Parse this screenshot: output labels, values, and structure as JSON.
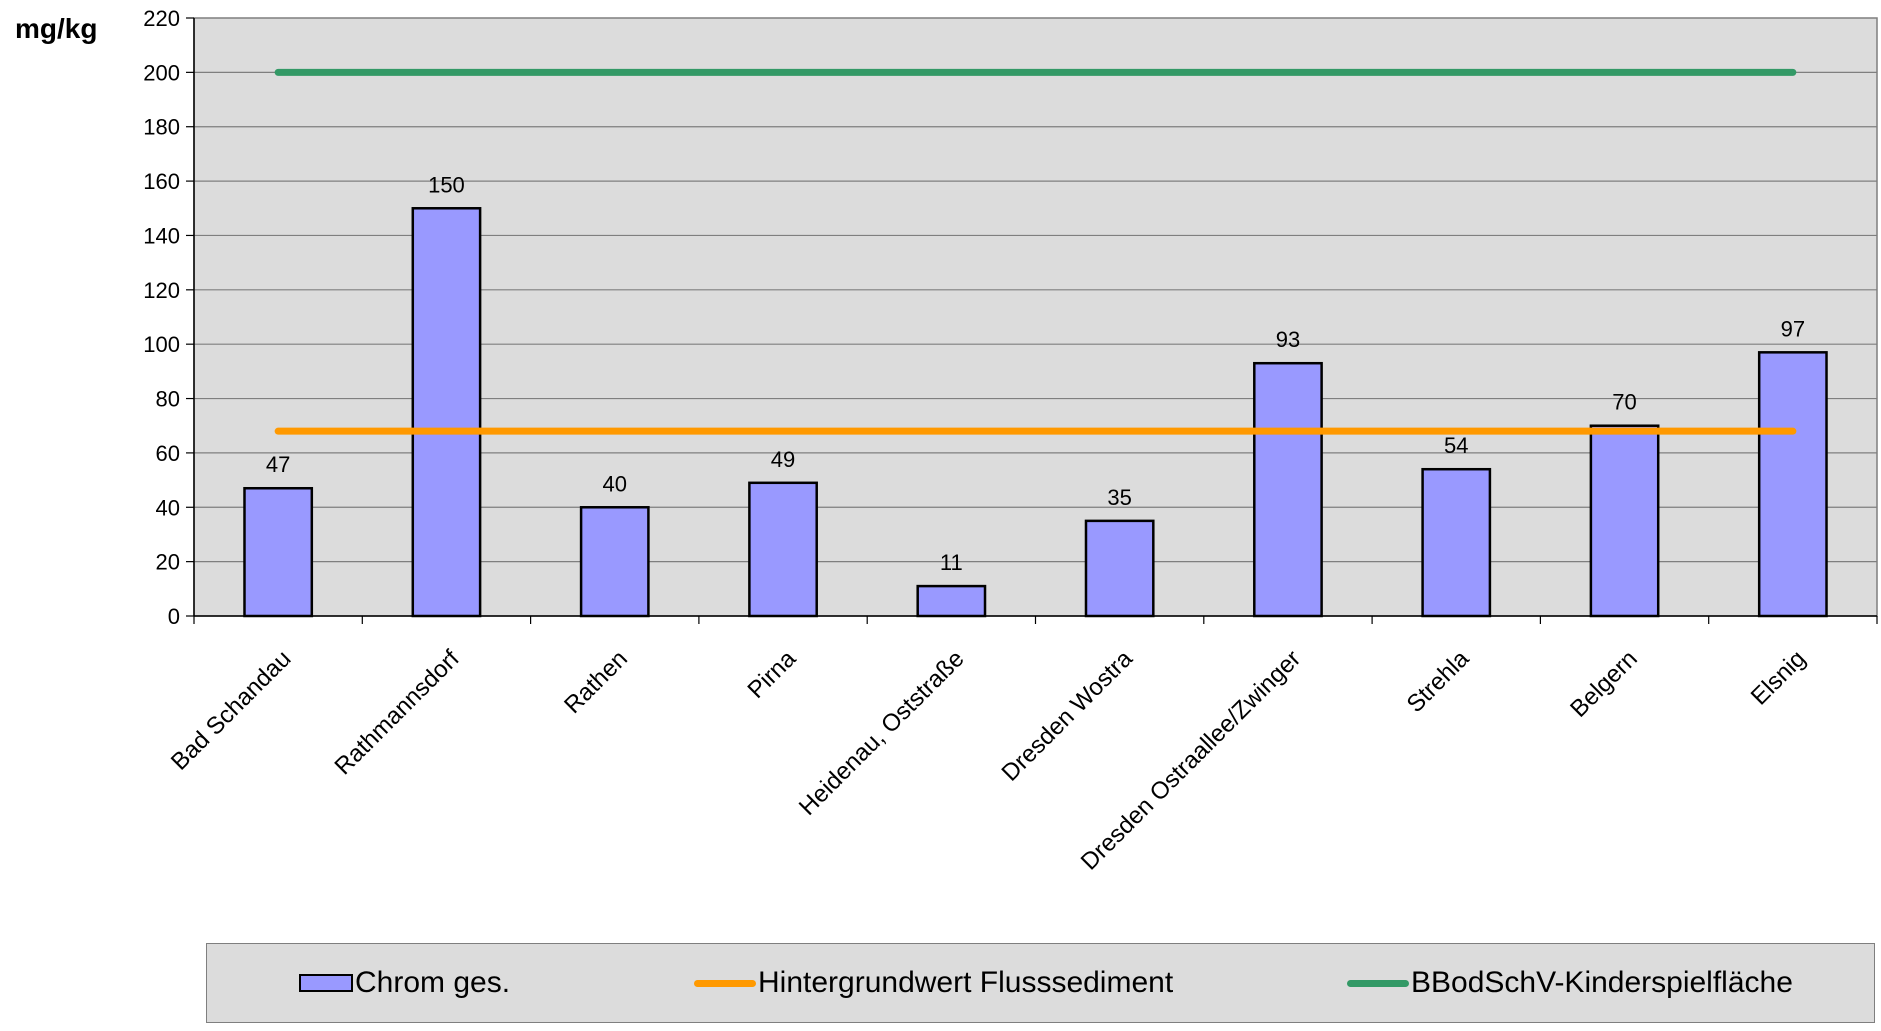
{
  "chart_data": {
    "type": "bar",
    "ylabel": "mg/kg",
    "ylim": [
      0,
      220
    ],
    "yticks": [
      0,
      20,
      40,
      60,
      80,
      100,
      120,
      140,
      160,
      180,
      200,
      220
    ],
    "grid": true,
    "categories": [
      "Bad Schandau",
      "Rathmannsdorf",
      "Rathen",
      "Pirna",
      "Heidenau, Oststraße",
      "Dresden Wostra",
      "Dresden Ostraallee/Zwinger",
      "Strehla",
      "Belgern",
      "Elsnig"
    ],
    "series": [
      {
        "name": "Chrom ges.",
        "kind": "bar",
        "color": "#9999ff",
        "values": [
          47,
          150,
          40,
          49,
          11,
          35,
          93,
          54,
          70,
          97
        ]
      },
      {
        "name": "Hintergrundwert Flusssediment",
        "kind": "line",
        "color": "#ff9900",
        "values": [
          68,
          68,
          68,
          68,
          68,
          68,
          68,
          68,
          68,
          68
        ]
      },
      {
        "name": "BBodSchV-Kinderspielfläche",
        "kind": "line",
        "color": "#339966",
        "values": [
          200,
          200,
          200,
          200,
          200,
          200,
          200,
          200,
          200,
          200
        ]
      }
    ],
    "legend_position": "bottom",
    "plot_background": "#dcdcdc"
  }
}
